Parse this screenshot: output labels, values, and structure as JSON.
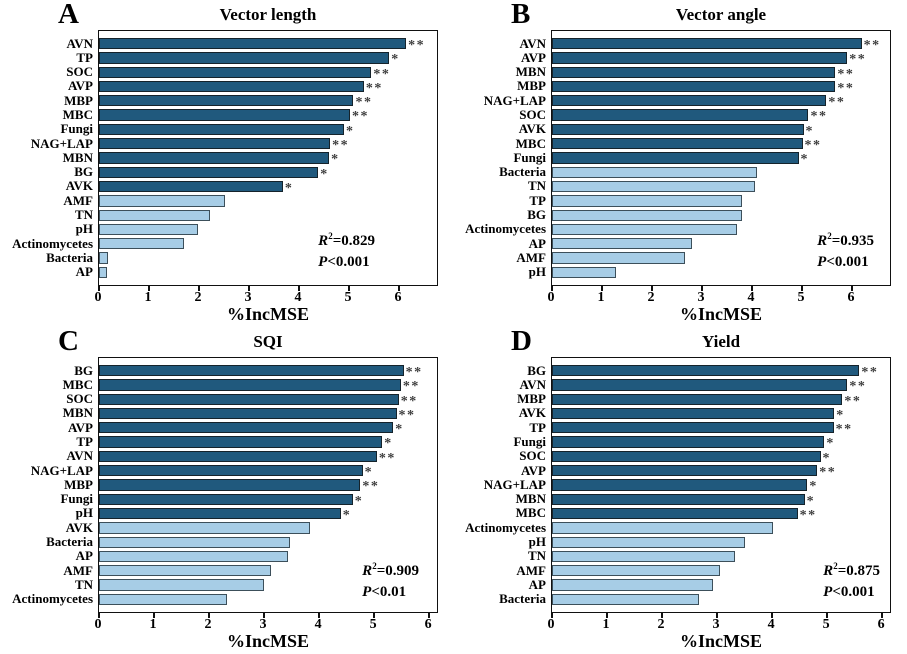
{
  "figure": {
    "colors": {
      "bar_high": "#20597d",
      "bar_low": "#a7cde6",
      "bar_border": "#15232b",
      "bar_low_border": "#3c4f5a",
      "sig": "#3d3d3d",
      "axis": "#111111"
    }
  },
  "chart_data": [
    {
      "type": "bar",
      "orientation": "horizontal",
      "panel": "A",
      "title": "Vector length",
      "xlabel": "%IncMSE",
      "xlim": [
        0,
        6.8
      ],
      "xticks": [
        0,
        1,
        2,
        3,
        4,
        5,
        6
      ],
      "stats": {
        "r2_sym": "R",
        "r2_sup": "2",
        "r2_val": "=0.829",
        "p_sym": "P",
        "p_val": "<0.001"
      },
      "bars": [
        {
          "label": "AVN",
          "value": 6.18,
          "sig": "**",
          "group": "high"
        },
        {
          "label": "TP",
          "value": 5.84,
          "sig": "*",
          "group": "high"
        },
        {
          "label": "SOC",
          "value": 5.48,
          "sig": "**",
          "group": "high"
        },
        {
          "label": "AVP",
          "value": 5.33,
          "sig": "**",
          "group": "high"
        },
        {
          "label": "MBP",
          "value": 5.12,
          "sig": "**",
          "group": "high"
        },
        {
          "label": "MBC",
          "value": 5.05,
          "sig": "**",
          "group": "high"
        },
        {
          "label": "Fungi",
          "value": 4.93,
          "sig": "*",
          "group": "high"
        },
        {
          "label": "NAG+LAP",
          "value": 4.65,
          "sig": "**",
          "group": "high"
        },
        {
          "label": "MBN",
          "value": 4.63,
          "sig": "*",
          "group": "high"
        },
        {
          "label": "BG",
          "value": 4.41,
          "sig": "*",
          "group": "high"
        },
        {
          "label": "AVK",
          "value": 3.7,
          "sig": "*",
          "group": "high"
        },
        {
          "label": "AMF",
          "value": 2.53,
          "sig": "",
          "group": "low"
        },
        {
          "label": "TN",
          "value": 2.24,
          "sig": "",
          "group": "low"
        },
        {
          "label": "pH",
          "value": 2.0,
          "sig": "",
          "group": "low"
        },
        {
          "label": "Actinomycetes",
          "value": 1.7,
          "sig": "",
          "group": "low"
        },
        {
          "label": "Bacteria",
          "value": 0.18,
          "sig": "",
          "group": "low"
        },
        {
          "label": "AP",
          "value": 0.17,
          "sig": "",
          "group": "low"
        }
      ]
    },
    {
      "type": "bar",
      "orientation": "horizontal",
      "panel": "B",
      "title": "Vector angle",
      "xlabel": "%IncMSE",
      "xlim": [
        0,
        6.8
      ],
      "xticks": [
        0,
        1,
        2,
        3,
        4,
        5,
        6
      ],
      "stats": {
        "r2_sym": "R",
        "r2_sup": "2",
        "r2_val": "=0.935",
        "p_sym": "P",
        "p_val": "<0.001"
      },
      "bars": [
        {
          "label": "AVN",
          "value": 6.23,
          "sig": "**",
          "group": "high"
        },
        {
          "label": "AVP",
          "value": 5.94,
          "sig": "**",
          "group": "high"
        },
        {
          "label": "MBN",
          "value": 5.7,
          "sig": "**",
          "group": "high"
        },
        {
          "label": "MBP",
          "value": 5.7,
          "sig": "**",
          "group": "high"
        },
        {
          "label": "NAG+LAP",
          "value": 5.52,
          "sig": "**",
          "group": "high"
        },
        {
          "label": "SOC",
          "value": 5.16,
          "sig": "**",
          "group": "high"
        },
        {
          "label": "AVK",
          "value": 5.06,
          "sig": "*",
          "group": "high"
        },
        {
          "label": "MBC",
          "value": 5.04,
          "sig": "**",
          "group": "high"
        },
        {
          "label": "Fungi",
          "value": 4.96,
          "sig": "*",
          "group": "high"
        },
        {
          "label": "Bacteria",
          "value": 4.13,
          "sig": "",
          "group": "low"
        },
        {
          "label": "TN",
          "value": 4.09,
          "sig": "",
          "group": "low"
        },
        {
          "label": "TP",
          "value": 3.83,
          "sig": "",
          "group": "low"
        },
        {
          "label": "BG",
          "value": 3.83,
          "sig": "",
          "group": "low"
        },
        {
          "label": "Actinomycetes",
          "value": 3.72,
          "sig": "",
          "group": "low"
        },
        {
          "label": "AP",
          "value": 2.82,
          "sig": "",
          "group": "low"
        },
        {
          "label": "AMF",
          "value": 2.68,
          "sig": "",
          "group": "low"
        },
        {
          "label": "pH",
          "value": 1.28,
          "sig": "",
          "group": "low"
        }
      ]
    },
    {
      "type": "bar",
      "orientation": "horizontal",
      "panel": "C",
      "title": "SQI",
      "xlabel": "%IncMSE",
      "xlim": [
        0,
        6.18
      ],
      "xticks": [
        0,
        1,
        2,
        3,
        4,
        5,
        6
      ],
      "stats": {
        "r2_sym": "R",
        "r2_sup": "2",
        "r2_val": "=0.909",
        "p_sym": "P",
        "p_val": "<0.01"
      },
      "bars": [
        {
          "label": "BG",
          "value": 5.57,
          "sig": "**",
          "group": "high"
        },
        {
          "label": "MBC",
          "value": 5.52,
          "sig": "**",
          "group": "high"
        },
        {
          "label": "SOC",
          "value": 5.48,
          "sig": "**",
          "group": "high"
        },
        {
          "label": "MBN",
          "value": 5.44,
          "sig": "**",
          "group": "high"
        },
        {
          "label": "AVP",
          "value": 5.38,
          "sig": "*",
          "group": "high"
        },
        {
          "label": "TP",
          "value": 5.18,
          "sig": "*",
          "group": "high"
        },
        {
          "label": "AVN",
          "value": 5.08,
          "sig": "**",
          "group": "high"
        },
        {
          "label": "NAG+LAP",
          "value": 4.82,
          "sig": "*",
          "group": "high"
        },
        {
          "label": "MBP",
          "value": 4.78,
          "sig": "**",
          "group": "high"
        },
        {
          "label": "Fungi",
          "value": 4.64,
          "sig": "*",
          "group": "high"
        },
        {
          "label": "pH",
          "value": 4.42,
          "sig": "*",
          "group": "high"
        },
        {
          "label": "AVK",
          "value": 3.85,
          "sig": "",
          "group": "low"
        },
        {
          "label": "Bacteria",
          "value": 3.5,
          "sig": "",
          "group": "low"
        },
        {
          "label": "AP",
          "value": 3.46,
          "sig": "",
          "group": "low"
        },
        {
          "label": "AMF",
          "value": 3.15,
          "sig": "",
          "group": "low"
        },
        {
          "label": "TN",
          "value": 3.01,
          "sig": "",
          "group": "low"
        },
        {
          "label": "Actinomycetes",
          "value": 2.34,
          "sig": "",
          "group": "low"
        }
      ]
    },
    {
      "type": "bar",
      "orientation": "horizontal",
      "panel": "D",
      "title": "Yield",
      "xlabel": "%IncMSE",
      "xlim": [
        0,
        6.18
      ],
      "xticks": [
        0,
        1,
        2,
        3,
        4,
        5,
        6
      ],
      "stats": {
        "r2_sym": "R",
        "r2_sup": "2",
        "r2_val": "=0.875",
        "p_sym": "P",
        "p_val": "<0.001"
      },
      "bars": [
        {
          "label": "BG",
          "value": 5.62,
          "sig": "**",
          "group": "high"
        },
        {
          "label": "AVN",
          "value": 5.4,
          "sig": "**",
          "group": "high"
        },
        {
          "label": "MBP",
          "value": 5.31,
          "sig": "**",
          "group": "high"
        },
        {
          "label": "AVK",
          "value": 5.16,
          "sig": "*",
          "group": "high"
        },
        {
          "label": "TP",
          "value": 5.15,
          "sig": "**",
          "group": "high"
        },
        {
          "label": "Fungi",
          "value": 4.98,
          "sig": "*",
          "group": "high"
        },
        {
          "label": "SOC",
          "value": 4.91,
          "sig": "*",
          "group": "high"
        },
        {
          "label": "AVP",
          "value": 4.85,
          "sig": "**",
          "group": "high"
        },
        {
          "label": "NAG+LAP",
          "value": 4.67,
          "sig": "*",
          "group": "high"
        },
        {
          "label": "MBN",
          "value": 4.62,
          "sig": "*",
          "group": "high"
        },
        {
          "label": "MBC",
          "value": 4.49,
          "sig": "**",
          "group": "high"
        },
        {
          "label": "Actinomycetes",
          "value": 4.04,
          "sig": "",
          "group": "low"
        },
        {
          "label": "pH",
          "value": 3.53,
          "sig": "",
          "group": "low"
        },
        {
          "label": "TN",
          "value": 3.35,
          "sig": "",
          "group": "low"
        },
        {
          "label": "AMF",
          "value": 3.07,
          "sig": "",
          "group": "low"
        },
        {
          "label": "AP",
          "value": 2.94,
          "sig": "",
          "group": "low"
        },
        {
          "label": "Bacteria",
          "value": 2.69,
          "sig": "",
          "group": "low"
        }
      ]
    }
  ]
}
